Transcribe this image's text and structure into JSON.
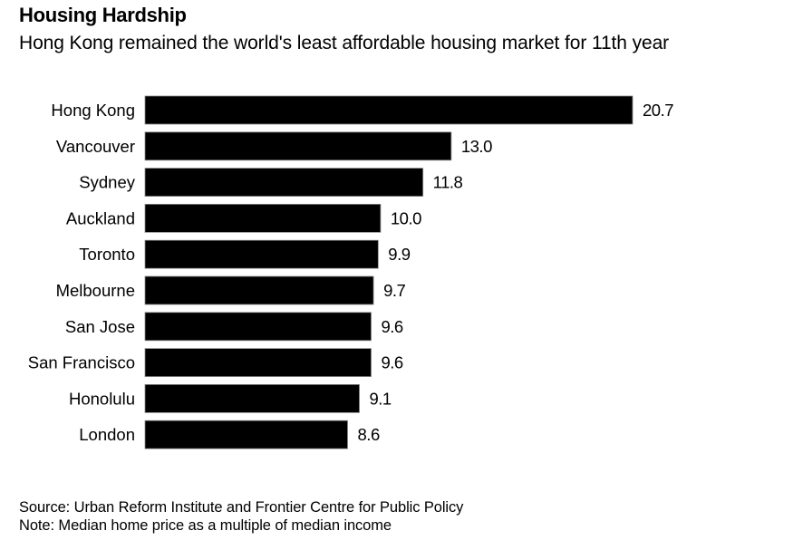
{
  "chart_data": {
    "type": "bar",
    "orientation": "horizontal",
    "title": "Housing Hardship",
    "subtitle": "Hong Kong remained the world's least affordable housing market for 11th year",
    "categories": [
      "Hong Kong",
      "Vancouver",
      "Sydney",
      "Auckland",
      "Toronto",
      "Melbourne",
      "San Jose",
      "San Francisco",
      "Honolulu",
      "London"
    ],
    "values": [
      20.7,
      13.0,
      11.8,
      10.0,
      9.9,
      9.7,
      9.6,
      9.6,
      9.1,
      8.6
    ],
    "value_labels": [
      "20.7",
      "13.0",
      "11.8",
      "10.0",
      "9.9",
      "9.7",
      "9.6",
      "9.6",
      "9.1",
      "8.6"
    ],
    "xlabel": "",
    "ylabel": "",
    "xlim": [
      0,
      20.7
    ],
    "grid": false,
    "legend": "none",
    "bar_color": "#000000",
    "source": "Source: Urban Reform Institute and Frontier Centre for Public Policy",
    "note": "Note: Median home price as a multiple of median income"
  }
}
